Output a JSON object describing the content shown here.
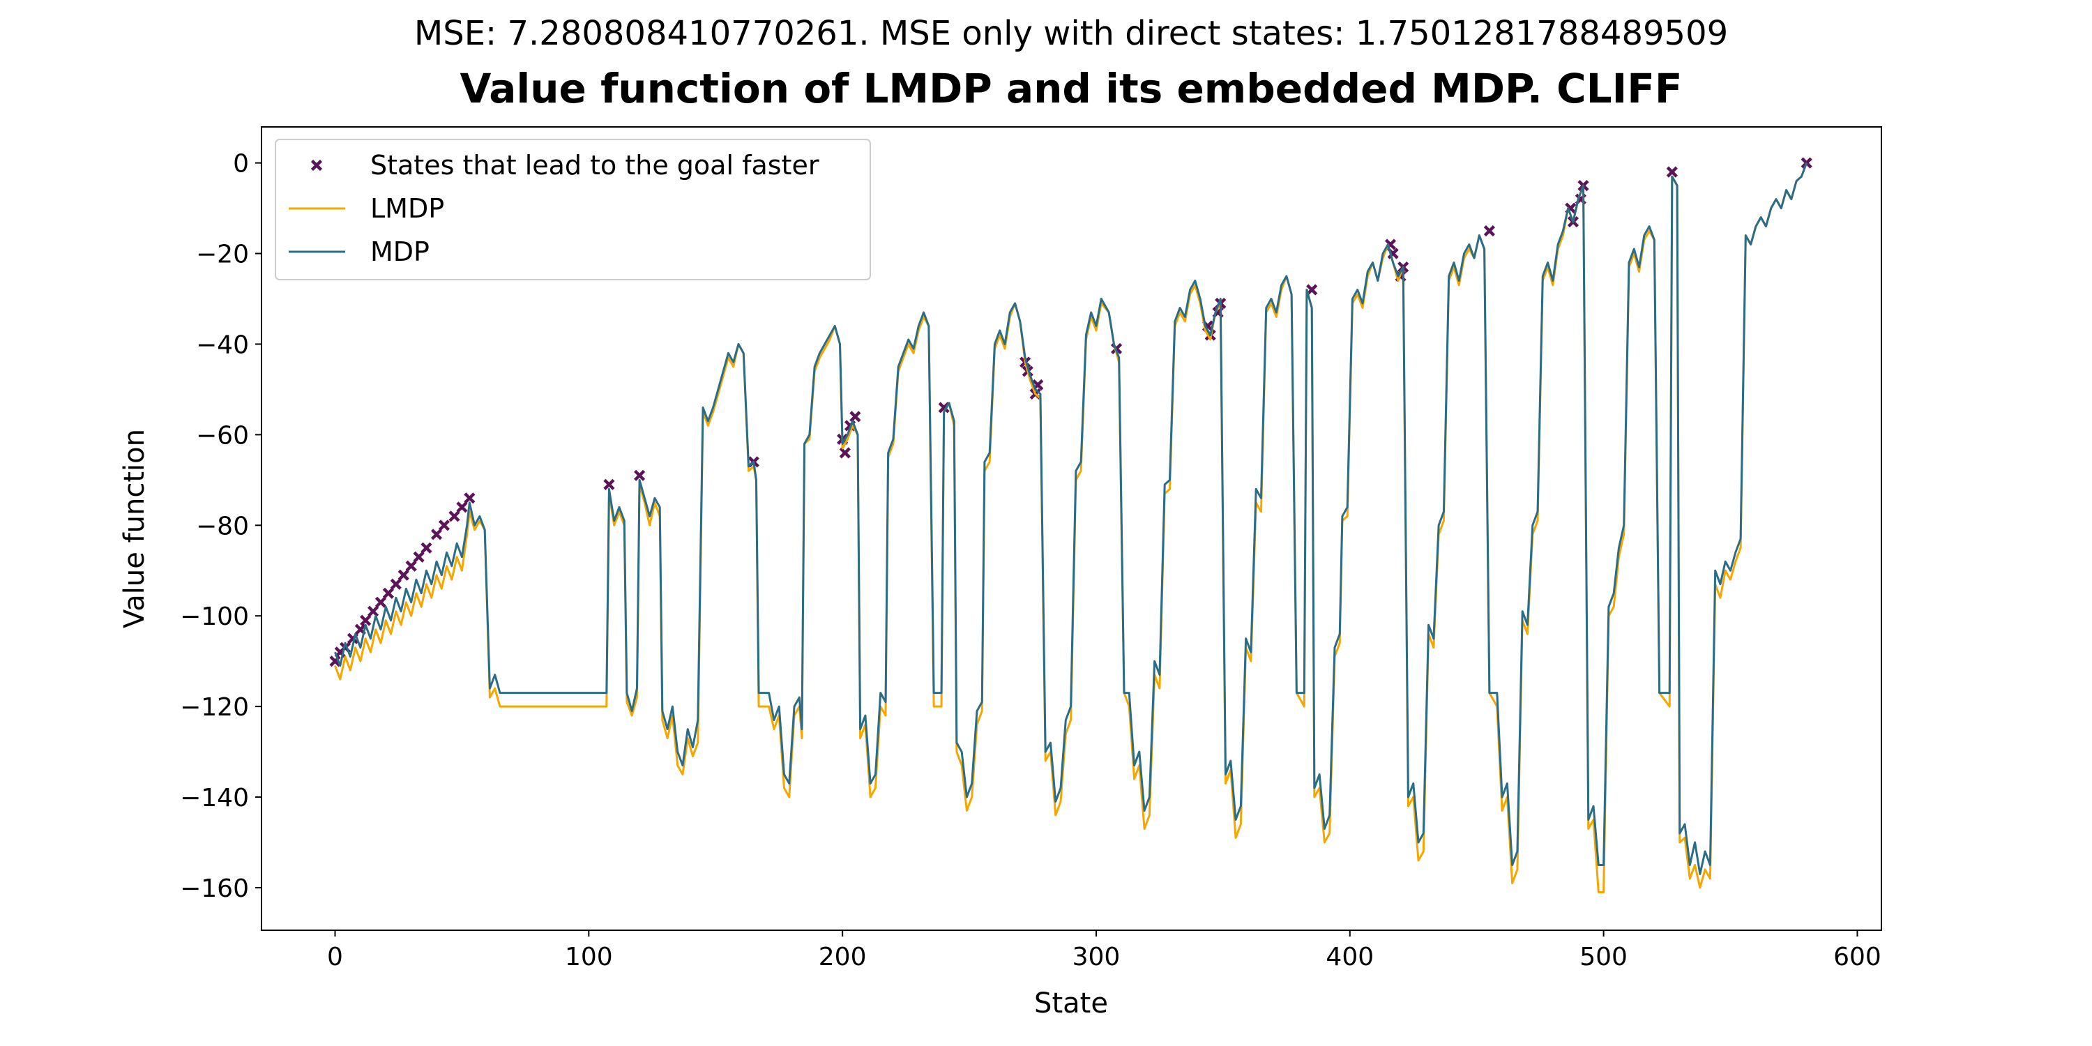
{
  "chart_data": {
    "type": "line",
    "suptitle": "MSE: 7.280808410770261. MSE only with direct states: 1.7501281788489509",
    "title": "Value function of LMDP and its embedded MDP. CLIFF",
    "xlabel": "State",
    "ylabel": "Value function",
    "xlim": [
      -29,
      609.5
    ],
    "ylim": [
      -169.4,
      7.95
    ],
    "xticks": [
      0,
      100,
      200,
      300,
      400,
      500,
      600
    ],
    "yticks": [
      0,
      {
        "value": -20,
        "label": "−20"
      },
      {
        "value": -40,
        "label": "−40"
      },
      {
        "value": -60,
        "label": "−60"
      },
      {
        "value": -80,
        "label": "−80"
      },
      {
        "value": -100,
        "label": "−100"
      },
      {
        "value": -120,
        "label": "−120"
      },
      {
        "value": -140,
        "label": "−140"
      },
      {
        "value": -160,
        "label": "−160"
      }
    ],
    "legend": "upper left",
    "x": [
      0,
      2,
      4,
      6,
      8,
      10,
      12,
      14,
      16,
      18,
      20,
      22,
      24,
      26,
      28,
      30,
      32,
      34,
      36,
      38,
      40,
      42,
      44,
      46,
      48,
      50,
      52,
      53,
      55,
      57,
      59,
      61,
      63,
      65,
      107,
      108,
      110,
      112,
      114,
      115,
      117,
      119,
      120,
      122,
      124,
      126,
      128,
      129,
      131,
      133,
      135,
      137,
      139,
      141,
      143,
      145,
      147,
      149,
      151,
      153,
      155,
      157,
      159,
      161,
      163,
      165,
      166,
      167,
      171,
      173,
      175,
      177,
      179,
      181,
      183,
      184,
      185,
      187,
      189,
      191,
      193,
      195,
      197,
      199,
      200,
      202,
      204,
      206,
      207,
      209,
      211,
      213,
      215,
      217,
      218,
      220,
      222,
      224,
      226,
      228,
      230,
      232,
      234,
      236,
      239,
      240,
      242,
      244,
      245,
      247,
      249,
      251,
      253,
      255,
      256,
      258,
      260,
      262,
      264,
      266,
      268,
      270,
      272,
      274,
      276,
      278,
      280,
      282,
      284,
      286,
      288,
      290,
      292,
      294,
      296,
      298,
      300,
      302,
      305,
      307,
      309,
      311,
      313,
      315,
      317,
      319,
      321,
      323,
      325,
      327,
      329,
      331,
      333,
      335,
      337,
      339,
      341,
      343,
      345,
      347,
      349,
      351,
      353,
      355,
      357,
      359,
      361,
      363,
      365,
      367,
      369,
      371,
      373,
      375,
      377,
      379,
      382,
      383,
      385,
      386,
      388,
      390,
      392,
      394,
      396,
      397,
      399,
      401,
      403,
      405,
      407,
      409,
      411,
      413,
      415,
      417,
      419,
      421,
      423,
      425,
      427,
      429,
      431,
      433,
      435,
      437,
      439,
      441,
      443,
      445,
      447,
      449,
      451,
      453,
      455,
      458,
      460,
      462,
      464,
      466,
      468,
      470,
      472,
      474,
      476,
      478,
      480,
      482,
      484,
      486,
      488,
      490,
      492,
      494,
      496,
      498,
      500,
      502,
      504,
      506,
      508,
      510,
      512,
      514,
      516,
      518,
      520,
      522,
      526,
      527,
      529,
      530,
      532,
      534,
      536,
      538,
      540,
      542,
      544,
      546,
      548,
      550,
      552,
      554,
      556,
      558,
      560,
      562,
      564,
      566,
      568,
      570,
      572,
      574,
      576,
      578,
      580
    ],
    "series": [
      {
        "name": "States that lead to the goal faster",
        "type": "scatter",
        "color": "#5b1457",
        "x": [
          0,
          2,
          4,
          7,
          10,
          12,
          15,
          18,
          21,
          24,
          27,
          30,
          33,
          36,
          40,
          43,
          47,
          50,
          53,
          108,
          120,
          165,
          200,
          201,
          203,
          205,
          240,
          272,
          273,
          276,
          277,
          308,
          344,
          345,
          348,
          349,
          385,
          416,
          417,
          420,
          421,
          455,
          487,
          488,
          491,
          492,
          527,
          580
        ],
        "values": [
          -110,
          -108,
          -107,
          -105,
          -103,
          -101,
          -99,
          -97,
          -95,
          -93,
          -91,
          -89,
          -87,
          -85,
          -82,
          -80,
          -78,
          -76,
          -74,
          -71,
          -69,
          -66,
          -61,
          -64,
          -58,
          -56,
          -54,
          -44,
          -46,
          -51,
          -49,
          -41,
          -36,
          -38,
          -33,
          -31,
          -28,
          -18,
          -20,
          -25,
          -23,
          -15,
          -10,
          -13,
          -8,
          -5,
          -2,
          0
        ]
      },
      {
        "name": "LMDP",
        "color": "#f5a700",
        "values": [
          -111,
          -114,
          -109,
          -112,
          -107,
          -110,
          -105,
          -108,
          -103,
          -106,
          -101,
          -104,
          -99,
          -102,
          -97,
          -100,
          -95,
          -98,
          -93,
          -96,
          -91,
          -94,
          -89,
          -92,
          -87,
          -90,
          -82,
          -77,
          -81,
          -79,
          -81,
          -118,
          -116,
          -120,
          -120,
          -73,
          -80,
          -77,
          -80,
          -119,
          -122,
          -118,
          -71,
          -75,
          -80,
          -75,
          -78,
          -123,
          -127,
          -122,
          -133,
          -135,
          -127,
          -131,
          -128,
          -55,
          -58,
          -55,
          -51,
          -47,
          -43,
          -45,
          -40,
          -42,
          -68,
          -67,
          -70,
          -120,
          -120,
          -125,
          -122,
          -138,
          -140,
          -122,
          -120,
          -127,
          -62,
          -61,
          -46,
          -43,
          -41,
          -39,
          -36,
          -40,
          -63,
          -61,
          -58,
          -60,
          -127,
          -124,
          -140,
          -138,
          -120,
          -122,
          -65,
          -62,
          -46,
          -43,
          -40,
          -42,
          -37,
          -34,
          -36,
          -120,
          -120,
          -55,
          -53,
          -58,
          -130,
          -133,
          -143,
          -140,
          -124,
          -121,
          -68,
          -66,
          -41,
          -38,
          -41,
          -34,
          -31,
          -35,
          -44,
          -48,
          -51,
          -52,
          -132,
          -130,
          -144,
          -141,
          -126,
          -123,
          -70,
          -68,
          -39,
          -34,
          -37,
          -31,
          -33,
          -40,
          -44,
          -117,
          -120,
          -136,
          -133,
          -147,
          -144,
          -113,
          -116,
          -73,
          -72,
          -36,
          -33,
          -35,
          -29,
          -27,
          -31,
          -37,
          -39,
          -33,
          -31,
          -137,
          -134,
          -149,
          -146,
          -107,
          -110,
          -75,
          -77,
          -33,
          -31,
          -34,
          -28,
          -25,
          -29,
          -117,
          -120,
          -28,
          -32,
          -140,
          -138,
          -150,
          -148,
          -109,
          -106,
          -79,
          -78,
          -31,
          -29,
          -32,
          -25,
          -22,
          -26,
          -21,
          -18,
          -22,
          -26,
          -23,
          -142,
          -140,
          -154,
          -152,
          -104,
          -107,
          -82,
          -79,
          -26,
          -23,
          -27,
          -21,
          -19,
          -21,
          -16,
          -19,
          -117,
          -120,
          -143,
          -140,
          -159,
          -156,
          -101,
          -104,
          -82,
          -79,
          -26,
          -23,
          -27,
          -19,
          -16,
          -10,
          -13,
          -8,
          -5,
          -147,
          -145,
          -161,
          -161,
          -100,
          -98,
          -87,
          -82,
          -23,
          -20,
          -24,
          -17,
          -15,
          -17,
          -117,
          -120,
          -3,
          -5,
          -150,
          -149,
          -158,
          -155,
          -160,
          -156,
          -158,
          -93,
          -96,
          -90,
          -92,
          -88,
          -85,
          -16,
          -18,
          -14,
          -12,
          -14,
          -10,
          -8,
          -10,
          -6,
          -8,
          -4,
          -3,
          0
        ]
      },
      {
        "name": "MDP",
        "color": "#2b6d87",
        "values": [
          -108,
          -111,
          -106,
          -109,
          -104,
          -107,
          -102,
          -105,
          -100,
          -103,
          -98,
          -101,
          -96,
          -99,
          -94,
          -97,
          -92,
          -95,
          -90,
          -93,
          -88,
          -91,
          -86,
          -89,
          -84,
          -87,
          -80,
          -75,
          -80,
          -78,
          -81,
          -116,
          -113,
          -117,
          -117,
          -72,
          -79,
          -76,
          -79,
          -117,
          -121,
          -116,
          -70,
          -74,
          -78,
          -74,
          -76,
          -121,
          -125,
          -120,
          -130,
          -133,
          -125,
          -129,
          -123,
          -54,
          -57,
          -54,
          -50,
          -46,
          -42,
          -44,
          -40,
          -42,
          -67,
          -66,
          -70,
          -117,
          -117,
          -123,
          -120,
          -135,
          -137,
          -120,
          -118,
          -125,
          -62,
          -60,
          -45,
          -42,
          -40,
          -38,
          -36,
          -40,
          -62,
          -60,
          -57,
          -60,
          -125,
          -122,
          -137,
          -135,
          -117,
          -119,
          -64,
          -61,
          -45,
          -42,
          -39,
          -41,
          -36,
          -33,
          -36,
          -117,
          -117,
          -55,
          -53,
          -57,
          -128,
          -130,
          -140,
          -137,
          -121,
          -119,
          -66,
          -64,
          -40,
          -37,
          -40,
          -33,
          -31,
          -35,
          -43,
          -47,
          -50,
          -51,
          -130,
          -128,
          -141,
          -138,
          -123,
          -120,
          -68,
          -66,
          -38,
          -33,
          -36,
          -30,
          -33,
          -40,
          -43,
          -117,
          -117,
          -133,
          -130,
          -143,
          -140,
          -110,
          -113,
          -71,
          -70,
          -35,
          -32,
          -34,
          -28,
          -26,
          -30,
          -36,
          -38,
          -33,
          -30,
          -135,
          -132,
          -145,
          -142,
          -105,
          -108,
          -72,
          -74,
          -32,
          -30,
          -33,
          -27,
          -25,
          -29,
          -117,
          -117,
          -28,
          -32,
          -138,
          -135,
          -147,
          -144,
          -107,
          -104,
          -78,
          -76,
          -30,
          -28,
          -31,
          -24,
          -22,
          -26,
          -20,
          -18,
          -22,
          -25,
          -23,
          -140,
          -137,
          -150,
          -148,
          -102,
          -105,
          -80,
          -77,
          -25,
          -22,
          -26,
          -20,
          -18,
          -21,
          -16,
          -19,
          -117,
          -117,
          -140,
          -137,
          -155,
          -152,
          -99,
          -102,
          -80,
          -77,
          -25,
          -22,
          -26,
          -18,
          -15,
          -10,
          -13,
          -8,
          -5,
          -145,
          -142,
          -155,
          -155,
          -98,
          -95,
          -85,
          -80,
          -22,
          -19,
          -23,
          -16,
          -14,
          -17,
          -117,
          -117,
          -3,
          -5,
          -148,
          -146,
          -155,
          -150,
          -157,
          -152,
          -155,
          -90,
          -93,
          -88,
          -90,
          -86,
          -83,
          -16,
          -18,
          -14,
          -12,
          -14,
          -10,
          -8,
          -10,
          -6,
          -8,
          -4,
          -3,
          0
        ]
      }
    ]
  }
}
